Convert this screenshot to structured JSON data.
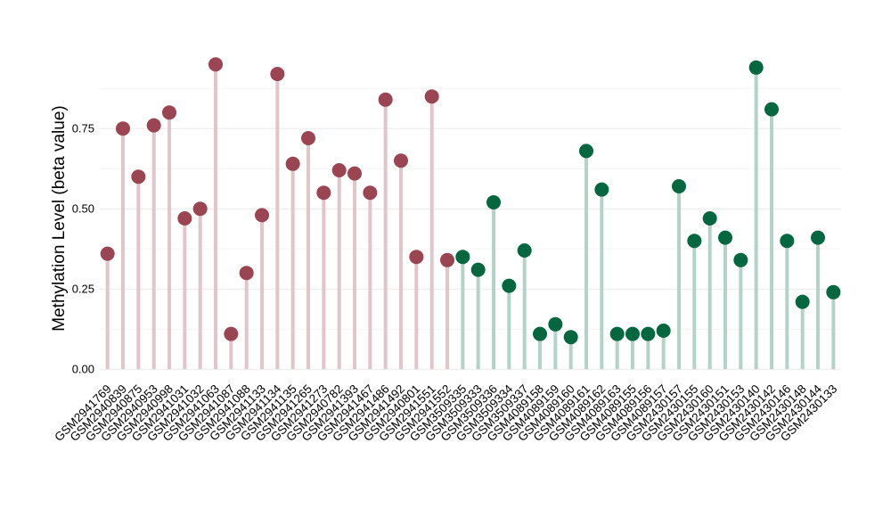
{
  "chart_data": {
    "type": "lollipop",
    "ylabel": "Methylation Level (beta value)",
    "ylim": [
      -0.005,
      0.995
    ],
    "yticks": [
      0.0,
      0.25,
      0.5,
      0.75
    ],
    "ytick_labels": [
      "0.00",
      "0.25",
      "0.50",
      "0.75"
    ],
    "grid": true,
    "legend": "none",
    "series": [
      {
        "color": "#9b4452",
        "stem_color": "#e1c5ca",
        "categories": [
          "GSM2941769",
          "GSM2940839",
          "GSM2940875",
          "GSM2940953",
          "GSM2940998",
          "GSM2941031",
          "GSM2941032",
          "GSM2941063",
          "GSM2941087",
          "GSM2941088",
          "GSM2941133",
          "GSM2941134",
          "GSM2941135",
          "GSM2941265",
          "GSM2941273",
          "GSM2940782",
          "GSM2941393",
          "GSM2941467",
          "GSM2941486",
          "GSM2941492",
          "GSM2940801",
          "GSM2941551",
          "GSM2941552"
        ],
        "values": [
          0.36,
          0.75,
          0.6,
          0.76,
          0.8,
          0.47,
          0.5,
          0.95,
          0.11,
          0.3,
          0.48,
          0.92,
          0.64,
          0.72,
          0.55,
          0.62,
          0.61,
          0.55,
          0.84,
          0.65,
          0.35,
          0.85,
          0.34
        ]
      },
      {
        "color": "#046740",
        "stem_color": "#b2d3c6",
        "categories": [
          "GSM3509335",
          "GSM3509333",
          "GSM3509336",
          "GSM3509334",
          "GSM3509337",
          "GSM4089158",
          "GSM4089159",
          "GSM4089160",
          "GSM4089161",
          "GSM4089162",
          "GSM4089163",
          "GSM4089155",
          "GSM4089156",
          "GSM4089157",
          "GSM2430157",
          "GSM2430155",
          "GSM2430160",
          "GSM2430151",
          "GSM2430153",
          "GSM2430140",
          "GSM2430142",
          "GSM2430146",
          "GSM2430148",
          "GSM2430144",
          "GSM2430133"
        ],
        "values": [
          0.35,
          0.31,
          0.52,
          0.26,
          0.37,
          0.11,
          0.14,
          0.1,
          0.68,
          0.56,
          0.11,
          0.11,
          0.11,
          0.12,
          0.57,
          0.4,
          0.47,
          0.41,
          0.34,
          0.94,
          0.81,
          0.4,
          0.21,
          0.41,
          0.24
        ]
      }
    ]
  }
}
